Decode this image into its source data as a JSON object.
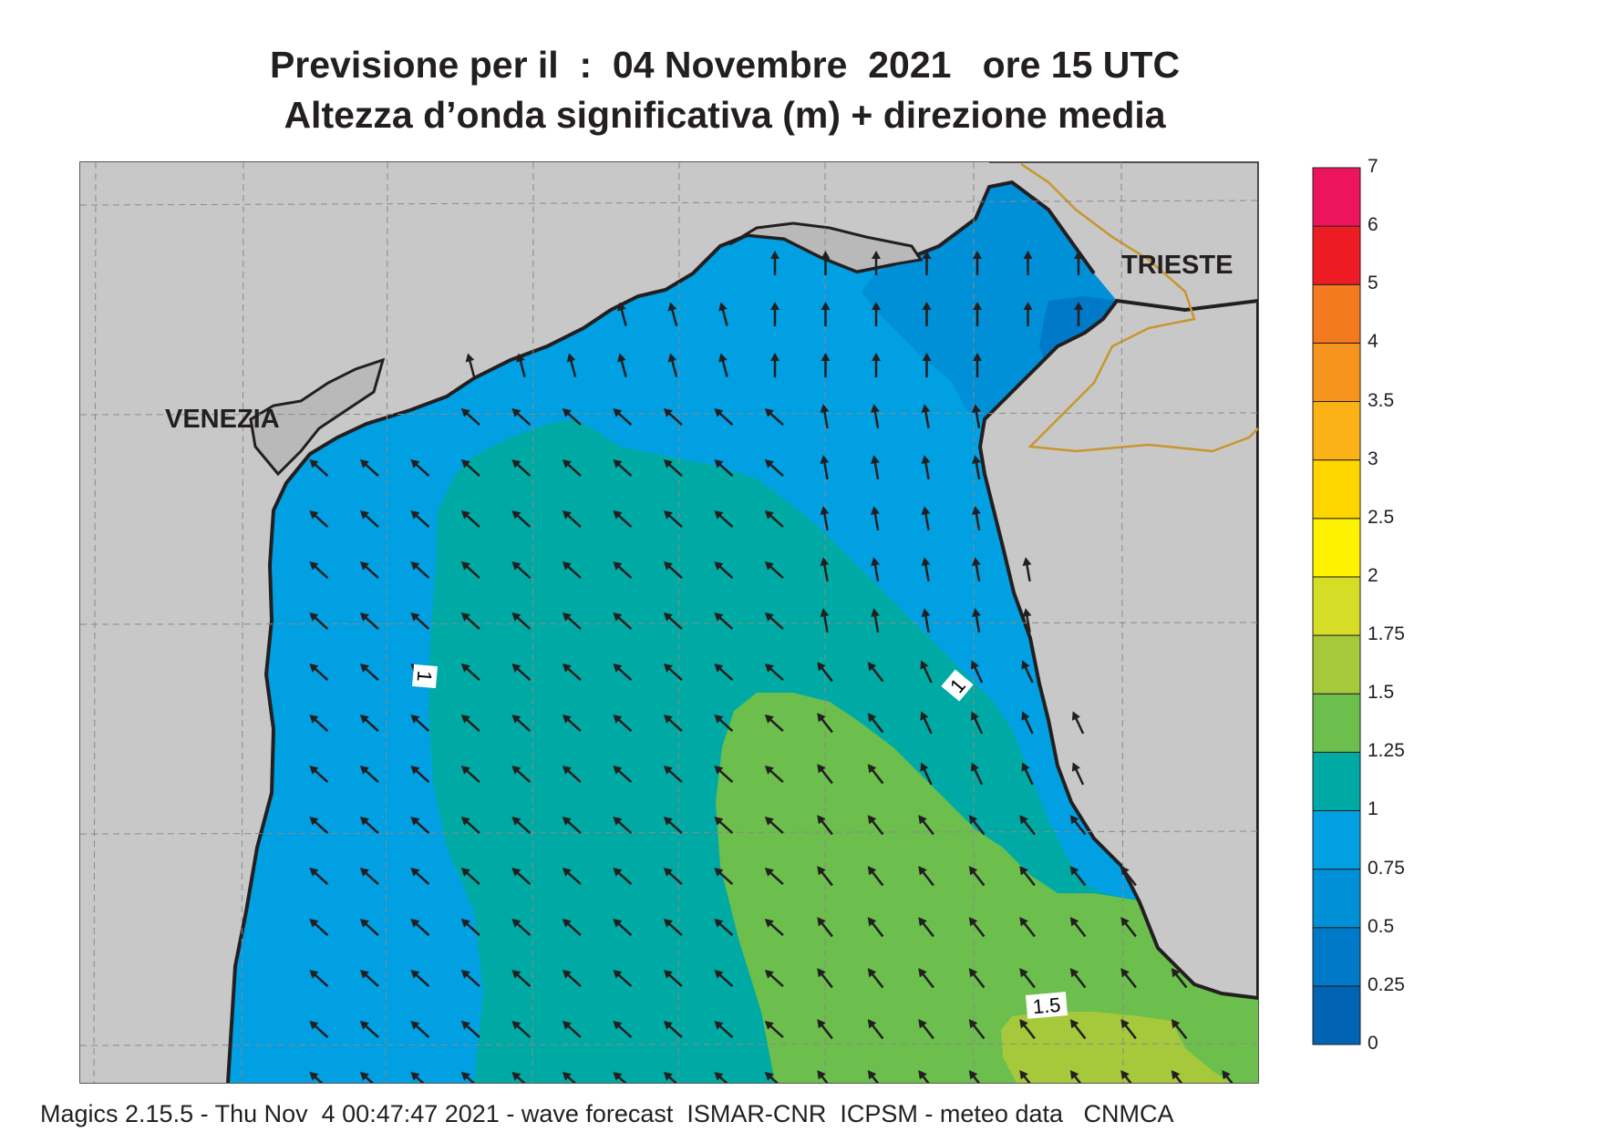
{
  "title": {
    "line1": "Previsione per il  :  04 Novembre  2021   ore 15 UTC",
    "line2": "Altezza d’onda significativa (m) + direzione media"
  },
  "footer": "Magics 2.15.5 - Thu Nov  4 00:47:47 2021 - wave forecast  ISMAR-CNR  ICPSM - meteo data   CNMCA",
  "cities": [
    "VENEZIA",
    "TRIESTE"
  ],
  "legend": {
    "levels": [
      "0",
      "0.25",
      "0.5",
      "0.75",
      "1",
      "1.25",
      "1.5",
      "1.75",
      "2",
      "2.5",
      "3",
      "3.5",
      "4",
      "5",
      "6",
      "7"
    ],
    "colors": [
      "#0063b3",
      "#0079c9",
      "#0090d8",
      "#00a0e3",
      "#00aaa4",
      "#6cbe4d",
      "#a6c93c",
      "#d6dd26",
      "#fff200",
      "#ffd500",
      "#fbb217",
      "#f7941d",
      "#f47a20",
      "#ed1c24",
      "#ec145c"
    ]
  },
  "contour_labels": [
    "1",
    "1",
    "1.5"
  ],
  "colors": {
    "land": "#c8c8c8",
    "coast": "#231f20",
    "border": "#c8962e",
    "arrow": "#231f20"
  },
  "arrow_directions": {
    "note_units": "degrees, direction toward which waves move (0 = north)",
    "north_zone_deg": 0,
    "central_zone_deg": -42,
    "open_sea_deg": -48
  }
}
